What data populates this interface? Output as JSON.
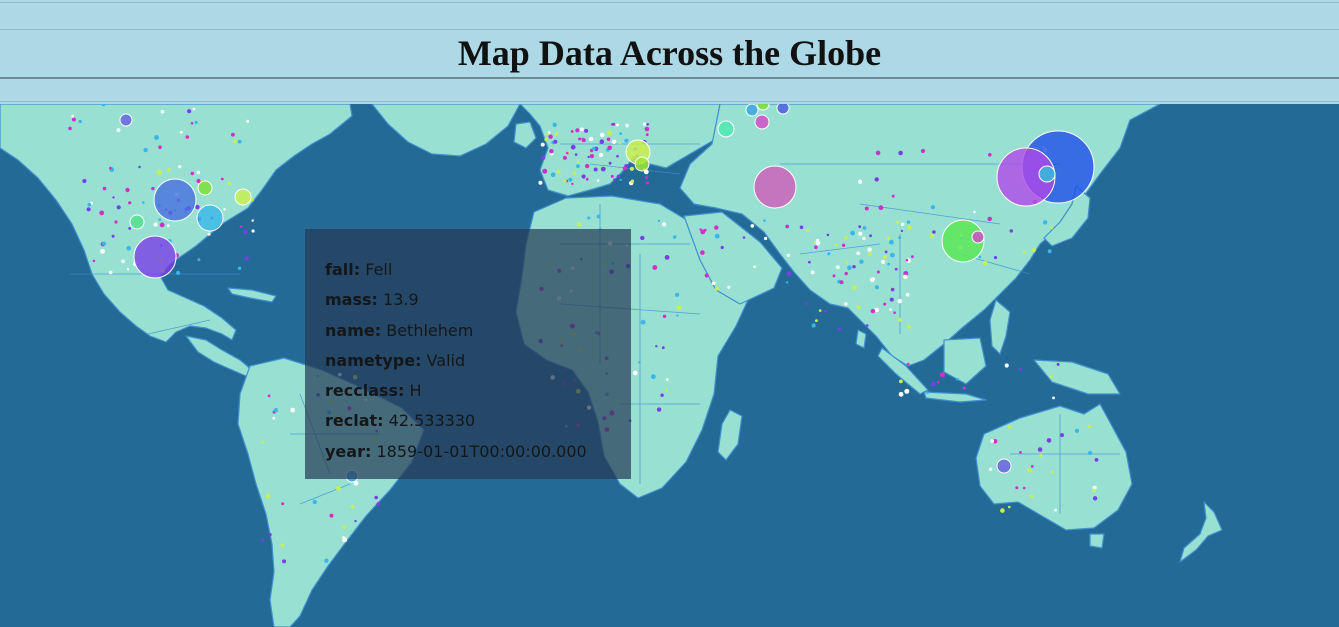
{
  "title": "Map Data Across the Globe",
  "colors": {
    "ocean": "#246a96",
    "land": "#98e1d2",
    "borders": "#3f8fcf",
    "header": "#add8e6",
    "tooltip_bg": "rgba(38,60,86,0.72)"
  },
  "tooltip": {
    "fields": [
      {
        "key": "fall",
        "value": "Fell"
      },
      {
        "key": "mass",
        "value": "13.9"
      },
      {
        "key": "name",
        "value": "Bethlehem"
      },
      {
        "key": "nametype",
        "value": "Valid"
      },
      {
        "key": "recclass",
        "value": "H"
      },
      {
        "key": "reclat",
        "value": "42.533330"
      },
      {
        "key": "year",
        "value": "1859-01-01T00:00:00.000"
      }
    ]
  }
}
